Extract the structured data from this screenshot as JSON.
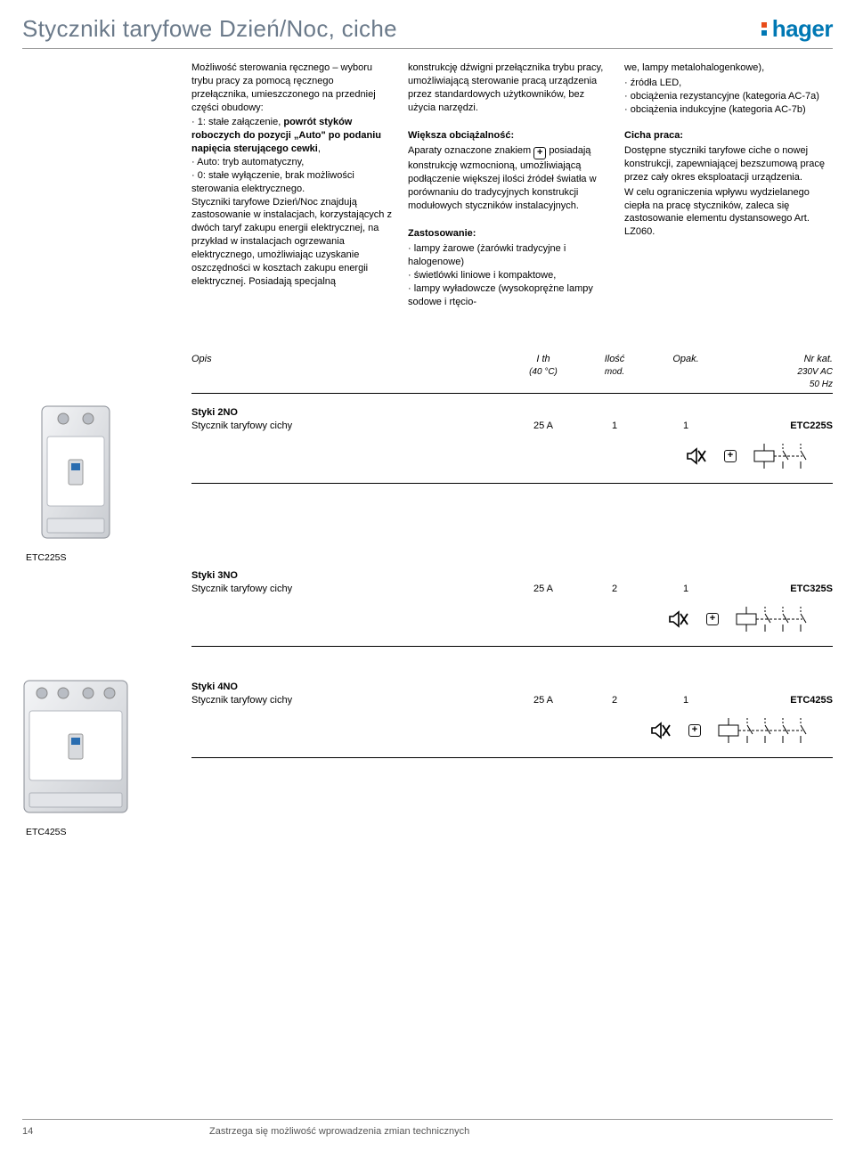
{
  "page": {
    "title": "Styczniki taryfowe Dzień/Noc, ciche",
    "logo_text": "hager",
    "page_number": "14",
    "footer_text": "Zastrzega się możliwość wprowadzenia zmian technicznych"
  },
  "colors": {
    "title_color": "#6b7a8a",
    "logo_blue": "#0078b4",
    "logo_red": "#e84c1a",
    "rule": "#999999"
  },
  "col1": {
    "p1": "Możliwość sterowania ręcznego – wyboru trybu pracy za pomocą ręcznego przełącznika, umieszczonego na przedniej części obudowy:",
    "b1_pre": "1: stałe załączenie, ",
    "b1_bold": "powrót styków roboczych do pozycji „Auto\" po podaniu napięcia sterującego cewki",
    "b1_post": ",",
    "b2": "Auto: tryb automatyczny,",
    "b3": "0: stałe wyłączenie, brak możliwości sterowania elektrycznego.",
    "p2": "Styczniki taryfowe Dzień/Noc znajdują zastosowanie w instalacjach, korzystających z dwóch taryf zakupu energii elektrycznej, na przykład w instalacjach ogrzewania elektrycznego, umożliwiając uzyskanie oszczędności w kosztach zakupu energii elektrycznej. Posiadają specjalną"
  },
  "col2": {
    "p1": "konstrukcję dźwigni przełącznika trybu pracy, umożliwiającą sterowanie pracą urządzenia przez standardowych użytkowników, bez użycia narzędzi.",
    "h1": "Większa obciążalność:",
    "p2a": "Aparaty oznaczone znakiem ",
    "p2b": " posiadają konstrukcję wzmocnioną, umożliwiającą podłączenie większej ilości źródeł światła w porównaniu do tradycyjnych konstrukcji modułowych styczników instalacyjnych.",
    "h2": "Zastosowanie:",
    "li1": "lampy żarowe (żarówki tradycyjne i halogenowe)",
    "li2": "świetlówki liniowe i kompaktowe,",
    "li3": "lampy wyładowcze (wysokoprężne lampy sodowe i rtęcio-"
  },
  "col3": {
    "p0": "we, lampy metalohalogenkowe),",
    "li1": "źródła LED,",
    "li2": "obciążenia rezystancyjne (kategoria AC-7a)",
    "li3": "obciążenia indukcyjne (kategoria AC-7b)",
    "h1": "Cicha praca:",
    "p1": "Dostępne styczniki taryfowe ciche o nowej konstrukcji, zapewniającej bezszumową pracę przez cały okres eksploatacji urządzenia.",
    "p2": "W celu ograniczenia wpływu wydzielanego ciepła na pracę styczników, zaleca się zastosowanie elementu dystansowego Art. LZ060."
  },
  "table": {
    "header": {
      "opis": "Opis",
      "ith": "I th",
      "ith_sub": "(40 °C)",
      "ilosc": "Ilość",
      "ilosc_sub": "mod.",
      "opak": "Opak.",
      "kat": "Nr kat.",
      "kat_sub1": "230V AC",
      "kat_sub2": "50 Hz"
    },
    "sections": [
      {
        "title": "Styki 2NO",
        "desc": "Stycznik taryfowy cichy",
        "ith": "25 A",
        "mod": "1",
        "opak": "1",
        "kat": "ETC225S",
        "contacts": 2,
        "caption": "ETC225S"
      },
      {
        "title": "Styki 3NO",
        "desc": "Stycznik taryfowy cichy",
        "ith": "25 A",
        "mod": "2",
        "opak": "1",
        "kat": "ETC325S",
        "contacts": 3,
        "caption": ""
      },
      {
        "title": "Styki 4NO",
        "desc": "Stycznik taryfowy cichy",
        "ith": "25 A",
        "mod": "2",
        "opak": "1",
        "kat": "ETC425S",
        "contacts": 4,
        "caption": "ETC425S"
      }
    ]
  }
}
